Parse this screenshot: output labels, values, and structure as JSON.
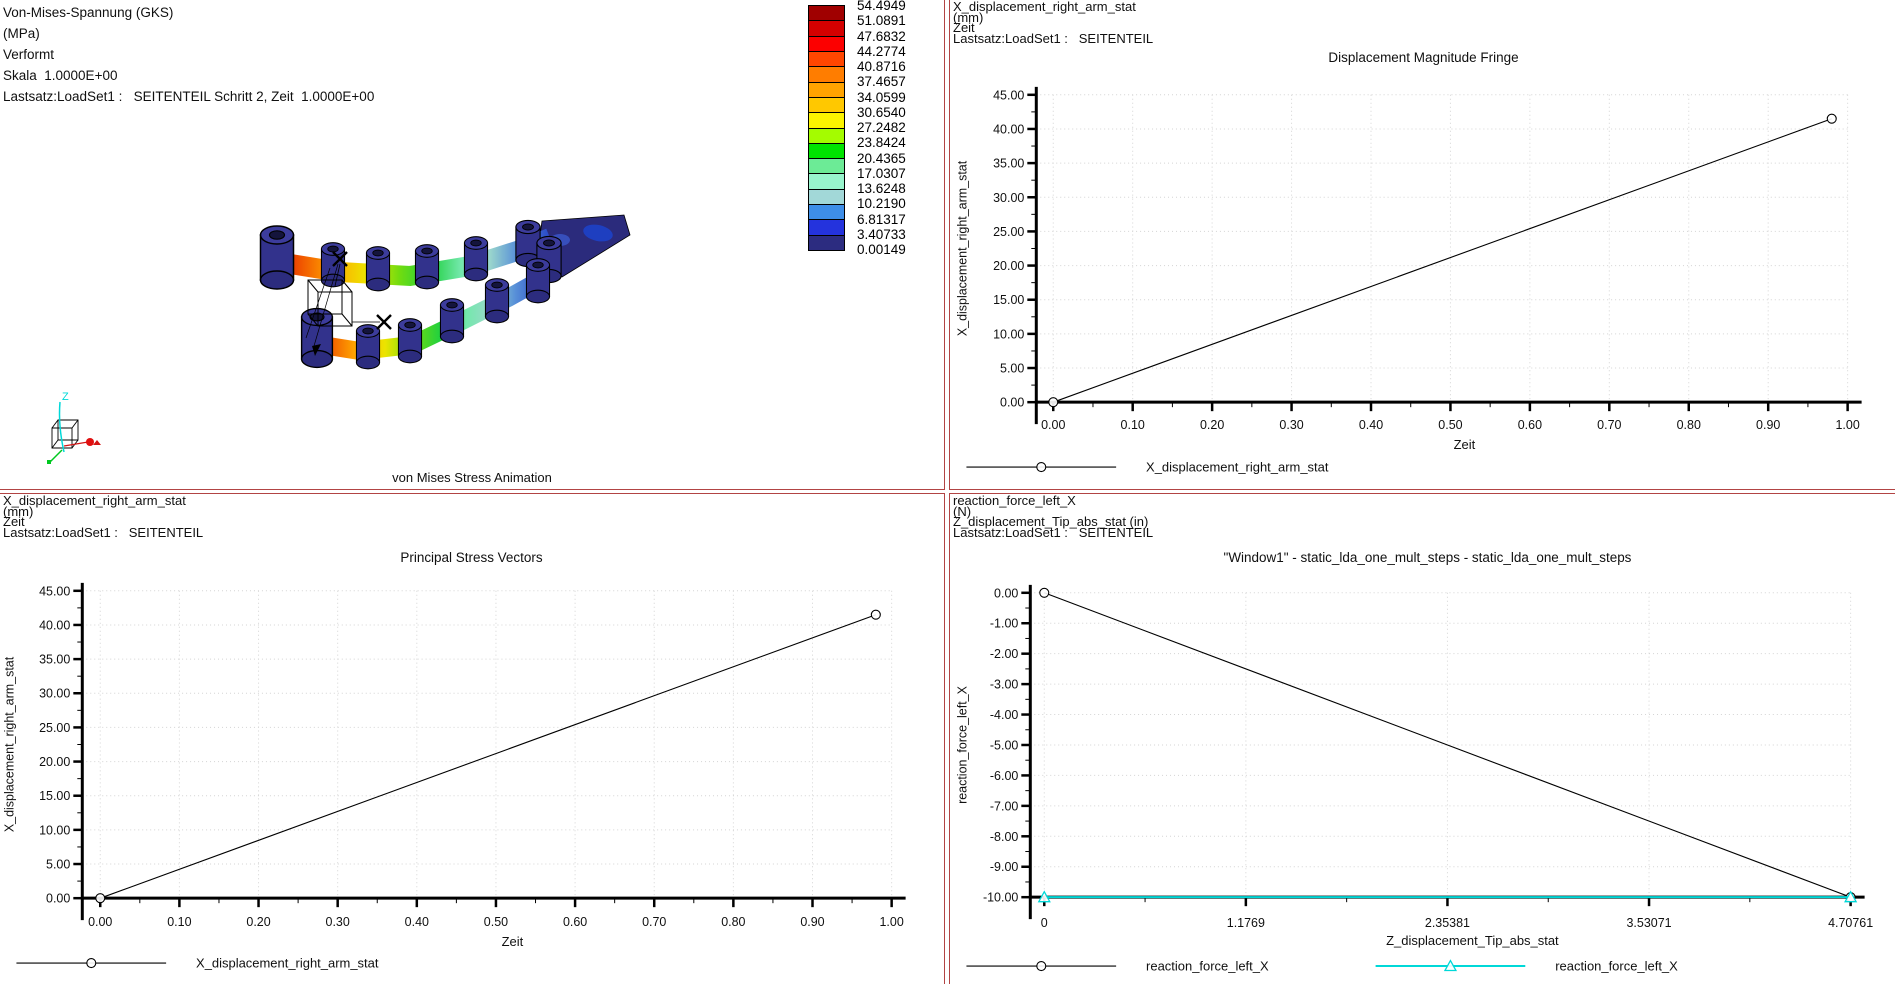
{
  "colors": {
    "divider": "#b24444",
    "axis": "#000000",
    "grid": "#d4d4d4",
    "text": "#101010",
    "cyan_series": "#00d8d8",
    "model_navy": "#32328c",
    "triad_x": "#d41414",
    "triad_y": "#00c820",
    "triad_z": "#00d8d8"
  },
  "panels": {
    "von_mises": {
      "header_lines": [
        "Von-Mises-Spannung (GKS)",
        "(MPa)",
        "Verformt",
        "Skala  1.0000E+00",
        "Lastsatz:LoadSet1 :   SEITENTEIL Schritt 2, Zeit  1.0000E+00"
      ],
      "caption": "von Mises Stress Animation",
      "triad_label": "Z",
      "colorbar_values": [
        "54.4949",
        "51.0891",
        "47.6832",
        "44.2774",
        "40.8716",
        "37.4657",
        "34.0599",
        "30.6540",
        "27.2482",
        "23.8424",
        "20.4365",
        "17.0307",
        "13.6248",
        "10.2190",
        "6.81317",
        "3.40733",
        "0.00149"
      ],
      "colorbar_colors": [
        "#a00000",
        "#d40000",
        "#fc0000",
        "#ff4600",
        "#ff7d00",
        "#ffa300",
        "#ffc800",
        "#fcf400",
        "#a4fc00",
        "#00e400",
        "#6ceb96",
        "#98f5cd",
        "#a2d8d8",
        "#3e8ee8",
        "#2433dd",
        "#2c2c80"
      ]
    },
    "displacement": {
      "header_lines": [
        "X_displacement_right_arm_stat",
        "(mm)",
        "Zeit",
        "Lastsatz:LoadSet1 :   SEITENTEIL"
      ]
    },
    "principal": {
      "header_lines": [
        "X_displacement_right_arm_stat",
        "(mm)",
        "Zeit",
        "Lastsatz:LoadSet1 :   SEITENTEIL"
      ]
    },
    "window1": {
      "header_lines": [
        "reaction_force_left_X",
        "(N)",
        "Z_displacement_Tip_abs_stat (in)",
        "Lastsatz:LoadSet1 :   SEITENTEIL"
      ]
    }
  },
  "chart_data": [
    {
      "id": "chart-tr",
      "type": "line",
      "title": "Displacement Magnitude Fringe",
      "xlabel": "Zeit",
      "ylabel": "X_displacement_right_arm_stat",
      "xlim": [
        0,
        1.0
      ],
      "ylim": [
        0,
        45
      ],
      "grid": true,
      "x_ticks": [
        {
          "v": 0,
          "l": "0.00"
        },
        {
          "v": 0.1,
          "l": "0.10"
        },
        {
          "v": 0.2,
          "l": "0.20"
        },
        {
          "v": 0.3,
          "l": "0.30"
        },
        {
          "v": 0.4,
          "l": "0.40"
        },
        {
          "v": 0.5,
          "l": "0.50"
        },
        {
          "v": 0.6,
          "l": "0.60"
        },
        {
          "v": 0.7,
          "l": "0.70"
        },
        {
          "v": 0.8,
          "l": "0.80"
        },
        {
          "v": 0.9,
          "l": "0.90"
        },
        {
          "v": 1.0,
          "l": "1.00"
        }
      ],
      "y_ticks": [
        {
          "v": 0,
          "l": "0.00"
        },
        {
          "v": 5,
          "l": "5.00"
        },
        {
          "v": 10,
          "l": "10.00"
        },
        {
          "v": 15,
          "l": "15.00"
        },
        {
          "v": 20,
          "l": "20.00"
        },
        {
          "v": 25,
          "l": "25.00"
        },
        {
          "v": 30,
          "l": "30.00"
        },
        {
          "v": 35,
          "l": "35.00"
        },
        {
          "v": 40,
          "l": "40.00"
        },
        {
          "v": 45,
          "l": "45.00"
        }
      ],
      "series": [
        {
          "name": "X_displacement_right_arm_stat",
          "color": "#000000",
          "width": 1.1,
          "marker": "circle",
          "points": [
            [
              0,
              0
            ],
            [
              0.98,
              41.5
            ]
          ]
        }
      ],
      "legend": [
        {
          "label": "X_displacement_right_arm_stat",
          "color": "#000000",
          "marker": "circle"
        }
      ]
    },
    {
      "id": "chart-bl",
      "type": "line",
      "title": "Principal Stress Vectors",
      "xlabel": "Zeit",
      "ylabel": "X_displacement_right_arm_stat",
      "xlim": [
        0,
        1.0
      ],
      "ylim": [
        0,
        45
      ],
      "grid": true,
      "x_ticks": [
        {
          "v": 0,
          "l": "0.00"
        },
        {
          "v": 0.1,
          "l": "0.10"
        },
        {
          "v": 0.2,
          "l": "0.20"
        },
        {
          "v": 0.3,
          "l": "0.30"
        },
        {
          "v": 0.4,
          "l": "0.40"
        },
        {
          "v": 0.5,
          "l": "0.50"
        },
        {
          "v": 0.6,
          "l": "0.60"
        },
        {
          "v": 0.7,
          "l": "0.70"
        },
        {
          "v": 0.8,
          "l": "0.80"
        },
        {
          "v": 0.9,
          "l": "0.90"
        },
        {
          "v": 1.0,
          "l": "1.00"
        }
      ],
      "y_ticks": [
        {
          "v": 0,
          "l": "0.00"
        },
        {
          "v": 5,
          "l": "5.00"
        },
        {
          "v": 10,
          "l": "10.00"
        },
        {
          "v": 15,
          "l": "15.00"
        },
        {
          "v": 20,
          "l": "20.00"
        },
        {
          "v": 25,
          "l": "25.00"
        },
        {
          "v": 30,
          "l": "30.00"
        },
        {
          "v": 35,
          "l": "35.00"
        },
        {
          "v": 40,
          "l": "40.00"
        },
        {
          "v": 45,
          "l": "45.00"
        }
      ],
      "series": [
        {
          "name": "X_displacement_right_arm_stat",
          "color": "#000000",
          "width": 1.1,
          "marker": "circle",
          "points": [
            [
              0,
              0
            ],
            [
              0.98,
              41.5
            ]
          ]
        }
      ],
      "legend": [
        {
          "label": "X_displacement_right_arm_stat",
          "color": "#000000",
          "marker": "circle"
        }
      ]
    },
    {
      "id": "chart-br",
      "type": "line",
      "title": "\"Window1\" - static_lda_one_mult_steps - static_lda_one_mult_steps",
      "xlabel": "Z_displacement_Tip_abs_stat",
      "ylabel": "reaction_force_left_X",
      "xlim": [
        0,
        4.70761
      ],
      "ylim": [
        -10,
        0
      ],
      "grid": true,
      "x_ticks": [
        {
          "v": 0,
          "l": "0"
        },
        {
          "v": 1.1769,
          "l": "1.1769"
        },
        {
          "v": 2.35381,
          "l": "2.35381"
        },
        {
          "v": 3.53071,
          "l": "3.53071"
        },
        {
          "v": 4.70761,
          "l": "4.70761"
        }
      ],
      "y_ticks": [
        {
          "v": 0,
          "l": "0.00"
        },
        {
          "v": -1,
          "l": "-1.00"
        },
        {
          "v": -2,
          "l": "-2.00"
        },
        {
          "v": -3,
          "l": "-3.00"
        },
        {
          "v": -4,
          "l": "-4.00"
        },
        {
          "v": -5,
          "l": "-5.00"
        },
        {
          "v": -6,
          "l": "-6.00"
        },
        {
          "v": -7,
          "l": "-7.00"
        },
        {
          "v": -8,
          "l": "-8.00"
        },
        {
          "v": -9,
          "l": "-9.00"
        },
        {
          "v": -10,
          "l": "-10.00"
        }
      ],
      "series": [
        {
          "name": "reaction_force_left_X",
          "color": "#000000",
          "width": 1.1,
          "marker": "circle",
          "points": [
            [
              0,
              0
            ],
            [
              4.70761,
              -10
            ]
          ]
        },
        {
          "name": "reaction_force_left_X",
          "color": "#00d8d8",
          "width": 2,
          "marker": "triangle",
          "points": [
            [
              0,
              -10
            ],
            [
              4.70761,
              -10
            ]
          ]
        }
      ],
      "legend": [
        {
          "label": "reaction_force_left_X",
          "color": "#000000",
          "marker": "circle"
        },
        {
          "label": "reaction_force_left_X",
          "color": "#00d8d8",
          "marker": "triangle"
        }
      ]
    }
  ]
}
